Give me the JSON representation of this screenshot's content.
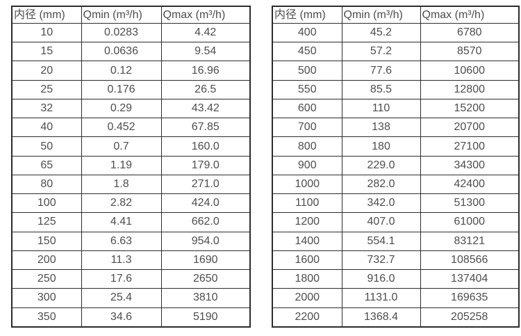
{
  "page": {
    "background_color": "#ffffff",
    "border_color": "#2b2b2b",
    "text_color": "#4d4d4d"
  },
  "tables": [
    {
      "name": "flow-table-small-diameters",
      "headers": [
        "内径 (mm)",
        "Qmin (m³/h)",
        "Qmax (m³/h)"
      ],
      "rows": [
        [
          "10",
          "0.0283",
          "4.42"
        ],
        [
          "15",
          "0.0636",
          "9.54"
        ],
        [
          "20",
          "0.12",
          "16.96"
        ],
        [
          "25",
          "0.176",
          "26.5"
        ],
        [
          "32",
          "0.29",
          "43.42"
        ],
        [
          "40",
          "0.452",
          "67.85"
        ],
        [
          "50",
          "0.7",
          "160.0"
        ],
        [
          "65",
          "1.19",
          "179.0"
        ],
        [
          "80",
          "1.8",
          "271.0"
        ],
        [
          "100",
          "2.82",
          "424.0"
        ],
        [
          "125",
          "4.41",
          "662.0"
        ],
        [
          "150",
          "6.63",
          "954.0"
        ],
        [
          "200",
          "11.3",
          "1690"
        ],
        [
          "250",
          "17.6",
          "2650"
        ],
        [
          "300",
          "25.4",
          "3810"
        ],
        [
          "350",
          "34.6",
          "5190"
        ]
      ]
    },
    {
      "name": "flow-table-large-diameters",
      "headers": [
        "内径 (mm)",
        "Qmin (m³/h)",
        "Qmax (m³/h)"
      ],
      "rows": [
        [
          "400",
          "45.2",
          "6780"
        ],
        [
          "450",
          "57.2",
          "8570"
        ],
        [
          "500",
          "77.6",
          "10600"
        ],
        [
          "550",
          "85.5",
          "12800"
        ],
        [
          "600",
          "110",
          "15200"
        ],
        [
          "700",
          "138",
          "20700"
        ],
        [
          "800",
          "180",
          "27100"
        ],
        [
          "900",
          "229.0",
          "34300"
        ],
        [
          "1000",
          "282.0",
          "42400"
        ],
        [
          "1100",
          "342.0",
          "51300"
        ],
        [
          "1200",
          "407.0",
          "61000"
        ],
        [
          "1400",
          "554.1",
          "83121"
        ],
        [
          "1600",
          "732.7",
          "108566"
        ],
        [
          "1800",
          "916.0",
          "137404"
        ],
        [
          "2000",
          "1131.0",
          "169635"
        ],
        [
          "2200",
          "1368.4",
          "205258"
        ]
      ]
    }
  ],
  "cell_names": [
    "diameter-cell",
    "qmin-cell",
    "qmax-cell"
  ]
}
